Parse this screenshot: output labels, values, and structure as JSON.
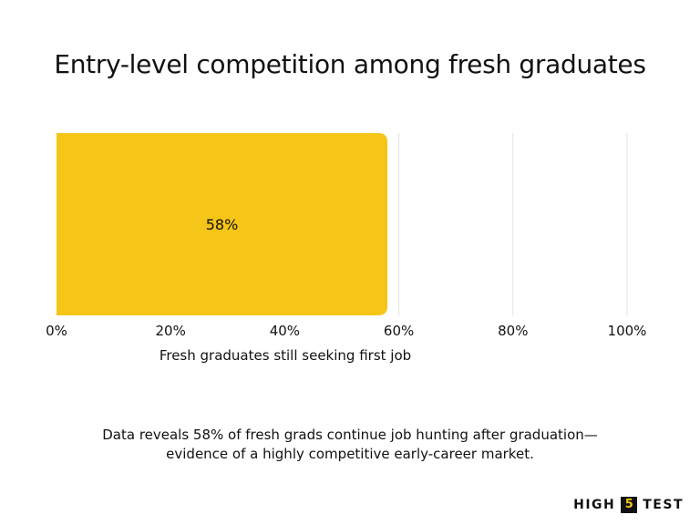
{
  "chart_data": {
    "type": "bar",
    "orientation": "horizontal",
    "title": "Entry-level competition among fresh graduates",
    "xlabel": "Fresh graduates still seeking first job",
    "ylabel": "",
    "xlim": [
      0,
      100
    ],
    "ticks": [
      {
        "value": 0,
        "label": "0%"
      },
      {
        "value": 20,
        "label": "20%"
      },
      {
        "value": 40,
        "label": "40%"
      },
      {
        "value": 60,
        "label": "60%"
      },
      {
        "value": 80,
        "label": "80%"
      },
      {
        "value": 100,
        "label": "100%"
      }
    ],
    "bars": [
      {
        "value": 58,
        "label": "58%",
        "color": "#F5C518"
      }
    ],
    "grid": true,
    "legend": "none"
  },
  "caption": {
    "line1": "Data reveals 58% of fresh grads continue job hunting after graduation—",
    "line2": "evidence of a highly competitive early-career market."
  },
  "logo": {
    "word1": "HIGH",
    "number": "5",
    "word2": "TEST"
  },
  "colors": {
    "bar": "#F5C518",
    "grid": "#e2e2e2",
    "text": "#111111"
  }
}
